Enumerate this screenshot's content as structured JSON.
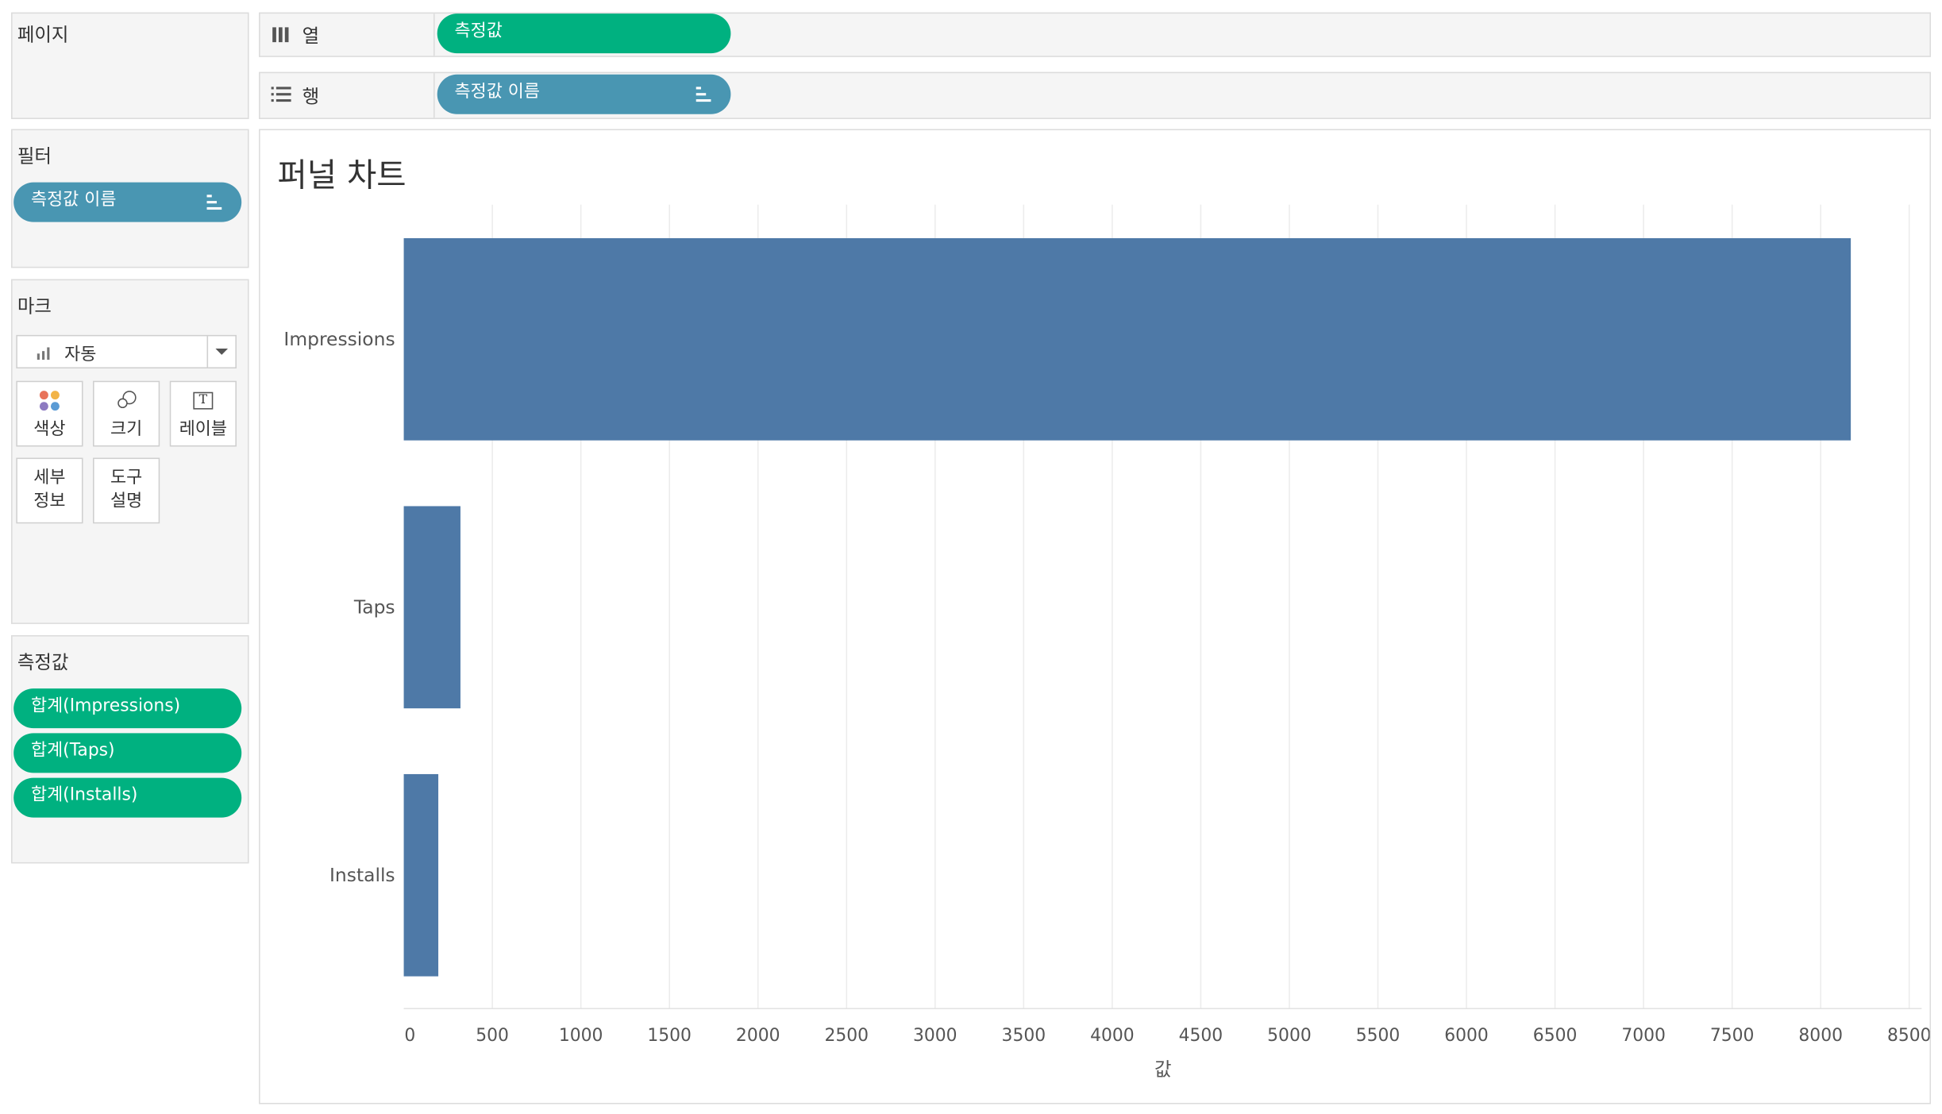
{
  "pages": {
    "title": "페이지"
  },
  "filters": {
    "title": "필터",
    "pill": "측정값 이름"
  },
  "marks": {
    "title": "마크",
    "type_label": "자동",
    "buttons": {
      "color": "색상",
      "size": "크기",
      "label": "레이블",
      "detail_1": "세부",
      "detail_2": "정보",
      "tooltip_1": "도구",
      "tooltip_2": "설명"
    }
  },
  "measure_values": {
    "title": "측정값",
    "pills": [
      "합계(Impressions)",
      "합계(Taps)",
      "합계(Installs)"
    ]
  },
  "columns": {
    "label": "열",
    "pill": "측정값"
  },
  "rows": {
    "label": "행",
    "pill": "측정값 이름"
  },
  "colors": {
    "bar": "#4e79a7",
    "green_pill": "#00b180",
    "blue_pill": "#4996b2"
  },
  "chart_data": {
    "type": "bar",
    "orientation": "horizontal",
    "title": "퍼널 차트",
    "categories": [
      "Impressions",
      "Taps",
      "Installs"
    ],
    "values": [
      8170,
      320,
      195
    ],
    "xlabel": "값",
    "ylabel": "",
    "xlim": [
      0,
      8500
    ],
    "xticks": [
      0,
      500,
      1000,
      1500,
      2000,
      2500,
      3000,
      3500,
      4000,
      4500,
      5000,
      5500,
      6000,
      6500,
      7000,
      7500,
      8000,
      8500
    ],
    "grid": true
  }
}
